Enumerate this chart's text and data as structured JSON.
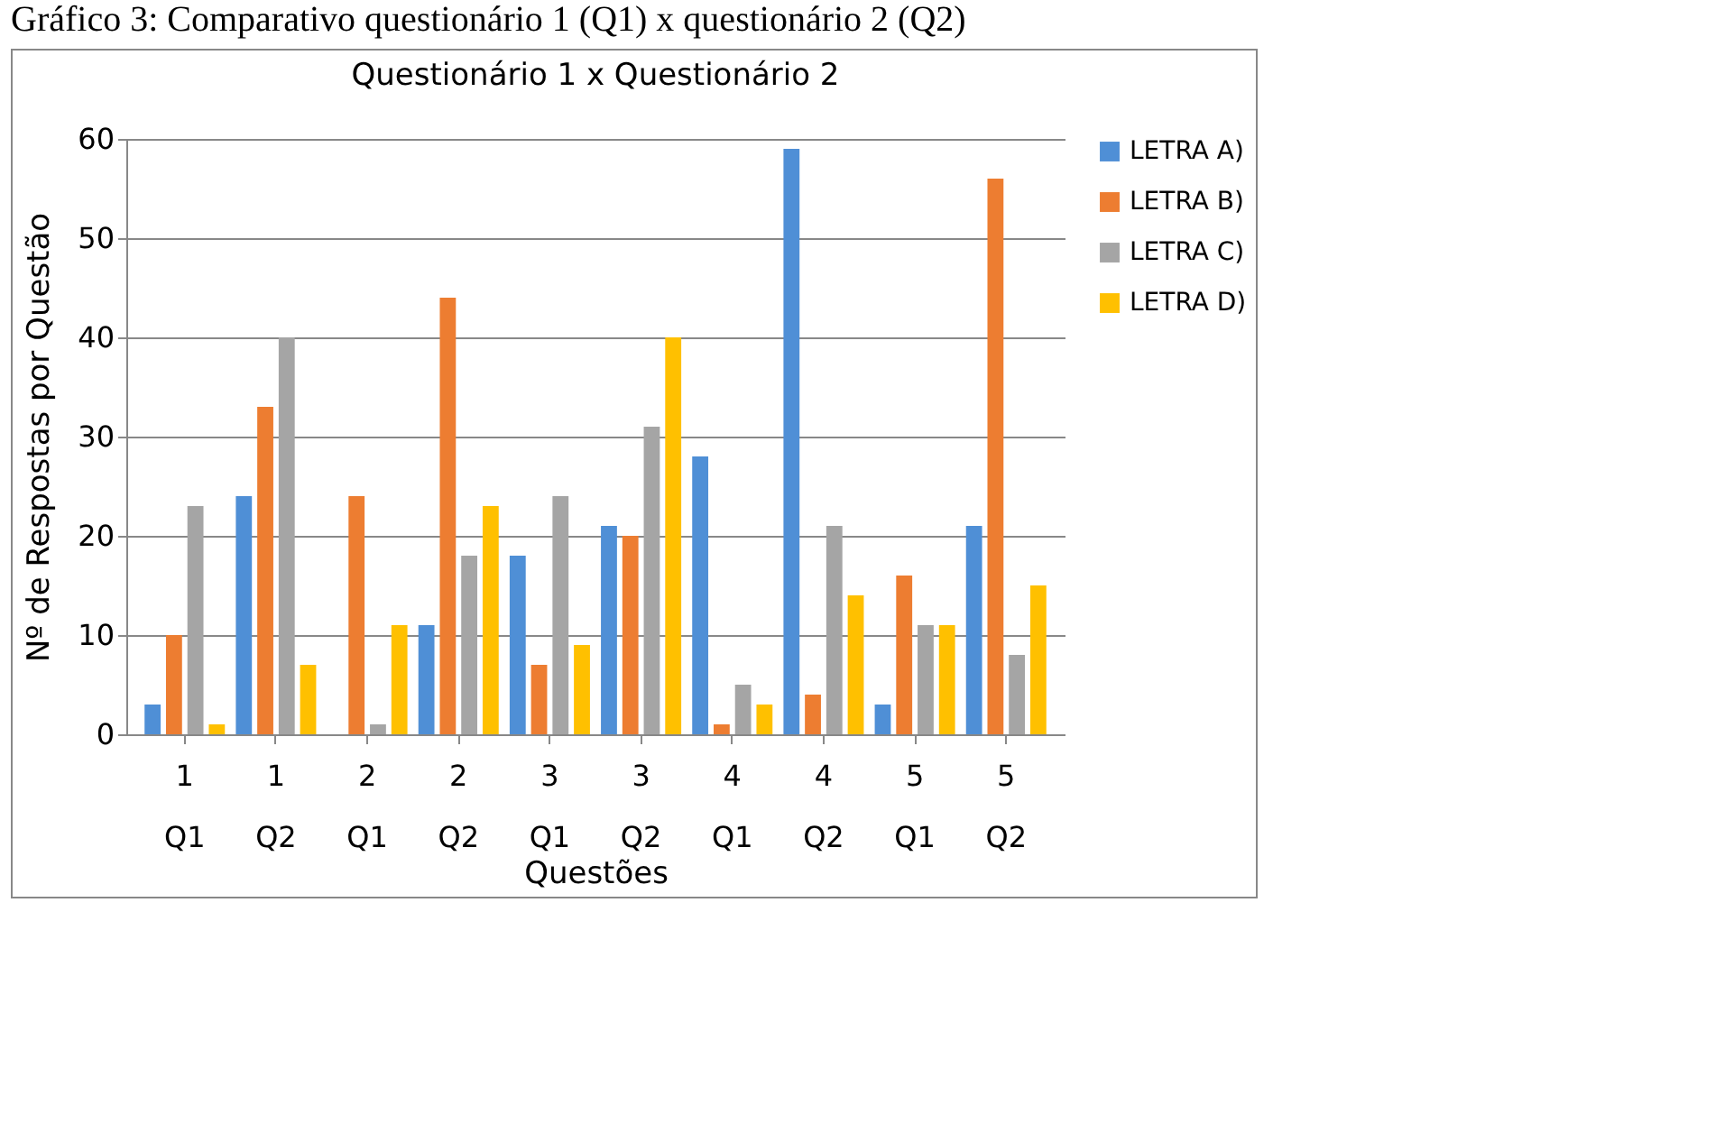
{
  "chart_data": {
    "type": "bar",
    "title": "Questionário 1 x Questionário 2",
    "xlabel": "Questões",
    "ylabel": "Nº de Respostas por Questão",
    "annotations": [
      "Gráfico 3: Comparativo questionário 1 (Q1) x questionário 2 (Q2)"
    ],
    "categories": [
      "1 Q1",
      "1 Q2",
      "2 Q1",
      "2 Q2",
      "3 Q1",
      "3 Q2",
      "4 Q1",
      "4 Q2",
      "5 Q1",
      "5 Q2"
    ],
    "series": [
      {
        "name": "LETRA A)",
        "color": "#4f8fd6",
        "values": [
          3,
          24,
          0,
          11,
          18,
          21,
          28,
          59,
          3,
          21
        ]
      },
      {
        "name": "LETRA B)",
        "color": "#ed7d31",
        "values": [
          10,
          33,
          24,
          44,
          7,
          20,
          1,
          4,
          16,
          56
        ]
      },
      {
        "name": "LETRA C)",
        "color": "#a5a5a5",
        "values": [
          23,
          40,
          1,
          18,
          24,
          31,
          5,
          21,
          11,
          8
        ]
      },
      {
        "name": "LETRA D)",
        "color": "#ffc000",
        "values": [
          1,
          7,
          11,
          23,
          9,
          40,
          3,
          14,
          11,
          15
        ]
      }
    ],
    "ylim": [
      0,
      60
    ],
    "yticks": [
      0,
      10,
      20,
      30,
      40,
      50,
      60
    ],
    "grid": "y",
    "legend": "right"
  }
}
